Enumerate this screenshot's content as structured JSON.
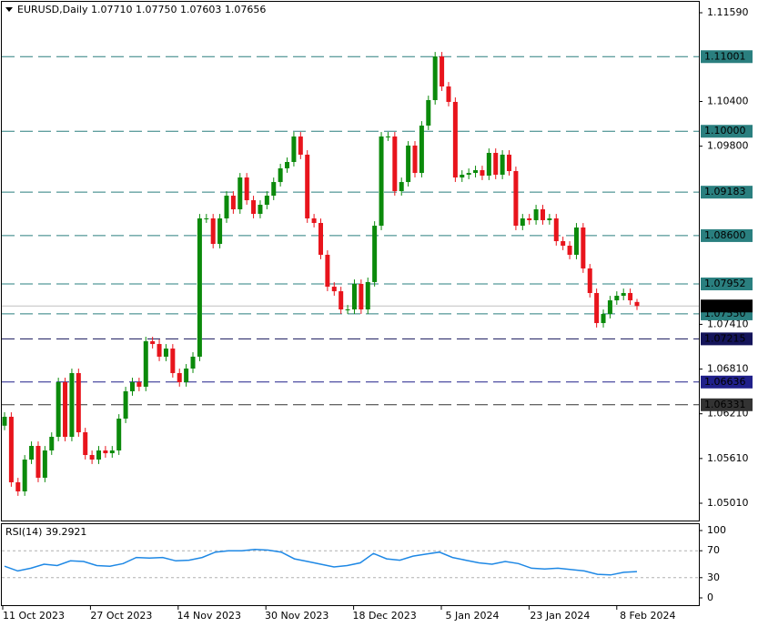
{
  "chart_data": [
    {
      "type": "candlestick",
      "title": "EURUSD,Daily  1.07710 1.07750 1.07603 1.07656",
      "ylim": [
        1.04778,
        1.11761
      ],
      "yticks": [
        {
          "value": 1.1159,
          "label": "1.11590"
        },
        {
          "value": 1.104,
          "label": "1.10400"
        },
        {
          "value": 1.098,
          "label": "1.09800"
        },
        {
          "value": 1.0741,
          "label": "1.07410"
        },
        {
          "value": 1.0681,
          "label": "1.06810"
        },
        {
          "value": 1.0621,
          "label": "1.06210"
        },
        {
          "value": 1.0561,
          "label": "1.05610"
        },
        {
          "value": 1.0501,
          "label": "1.05010"
        }
      ],
      "x_labels": [
        "11 Oct 2023",
        "27 Oct 2023",
        "14 Nov 2023",
        "30 Nov 2023",
        "18 Dec 2023",
        "5 Jan 2024",
        "23 Jan 2024",
        "8 Feb 2024"
      ],
      "bull_color": "#0b8a0b",
      "bear_color": "#e8141c",
      "levels": [
        {
          "value": 1.11001,
          "color": "#2a7f7f"
        },
        {
          "value": 1.1,
          "label": "1.10000",
          "color": "#2a7f7f"
        },
        {
          "value": 1.09183,
          "color": "#2a7f7f"
        },
        {
          "value": 1.086,
          "label": "1.08600",
          "color": "#2a7f7f"
        },
        {
          "value": 1.07952,
          "color": "#2a7f7f"
        },
        {
          "value": 1.0755,
          "label": "1.07550",
          "color": "#2a7f7f"
        },
        {
          "value": 1.07215,
          "color": "#14145a"
        },
        {
          "value": 1.06636,
          "color": "#20208a"
        },
        {
          "value": 1.06331,
          "color": "#333333"
        }
      ],
      "current_price": 1.07656,
      "open": [
        1.0605,
        1.0617,
        1.05291,
        1.05169,
        1.05596,
        1.05779,
        1.05352,
        1.05718,
        1.05901,
        1.06634,
        1.05901,
        1.06756,
        1.05962,
        1.05657,
        1.05596,
        1.05718,
        1.05681,
        1.05718,
        1.06145,
        1.06512,
        1.06634,
        1.06573,
        1.07183,
        1.07146,
        1.06976,
        1.07085,
        1.06756,
        1.06634,
        1.06817,
        1.06976,
        1.08831,
        1.08831,
        1.08489,
        1.08831,
        1.09136,
        1.08953,
        1.0938,
        1.09075,
        1.08892,
        1.09014,
        1.09136,
        1.09319,
        1.09503,
        1.09588,
        1.0993,
        1.09686,
        1.08831,
        1.0877,
        1.08343,
        1.07915,
        1.07854,
        1.0761,
        1.0761,
        1.07952,
        1.0761,
        1.07977,
        1.08733,
        1.0993,
        1.0993,
        1.09197,
        1.09319,
        1.09808,
        1.09441,
        1.10076,
        1.10418,
        1.11004,
        1.10601,
        1.10394,
        1.0938,
        1.09417,
        1.09441,
        1.09478,
        1.09405,
        1.0971,
        1.09417,
        1.09686,
        1.09466,
        1.08733,
        1.08831,
        1.08807,
        1.08953,
        1.08807,
        1.08831,
        1.08526,
        1.08465,
        1.08343,
        1.08709,
        1.0816,
        1.0783,
        1.07427,
        1.07549,
        1.07732,
        1.07793,
        1.0783,
        1.0771
      ],
      "high": [
        1.0623,
        1.0623,
        1.05351,
        1.05656,
        1.05839,
        1.05839,
        1.05778,
        1.05961,
        1.06694,
        1.06694,
        1.06816,
        1.06816,
        1.06022,
        1.05717,
        1.05778,
        1.05778,
        1.05778,
        1.06205,
        1.06572,
        1.06694,
        1.06694,
        1.07243,
        1.07243,
        1.07206,
        1.07145,
        1.07145,
        1.06816,
        1.06877,
        1.07036,
        1.08891,
        1.08891,
        1.08891,
        1.08891,
        1.09196,
        1.09196,
        1.0944,
        1.0944,
        1.09135,
        1.09074,
        1.09196,
        1.09379,
        1.09563,
        1.09648,
        1.0999,
        1.0999,
        1.09746,
        1.08891,
        1.0883,
        1.08403,
        1.07975,
        1.07914,
        1.0767,
        1.08012,
        1.08012,
        1.08037,
        1.08793,
        1.0999,
        1.0999,
        1.0999,
        1.09379,
        1.09868,
        1.09868,
        1.10136,
        1.10478,
        1.11064,
        1.11064,
        1.10661,
        1.10454,
        1.09477,
        1.09501,
        1.09538,
        1.09538,
        1.0977,
        1.0977,
        1.09746,
        1.09746,
        1.09526,
        1.08891,
        1.08891,
        1.09013,
        1.09013,
        1.08891,
        1.08891,
        1.08586,
        1.08525,
        1.08769,
        1.08769,
        1.0822,
        1.0789,
        1.07609,
        1.07792,
        1.07853,
        1.0789,
        1.0789,
        1.0775
      ],
      "low": [
        1.0599,
        1.05231,
        1.05109,
        1.05109,
        1.05536,
        1.05292,
        1.05292,
        1.05658,
        1.05841,
        1.05841,
        1.05841,
        1.05902,
        1.05597,
        1.05536,
        1.05536,
        1.05621,
        1.05621,
        1.05658,
        1.06085,
        1.06452,
        1.06513,
        1.06513,
        1.07086,
        1.06916,
        1.06916,
        1.06696,
        1.06574,
        1.06574,
        1.06757,
        1.06916,
        1.08771,
        1.08429,
        1.08429,
        1.08771,
        1.08893,
        1.08893,
        1.09015,
        1.08832,
        1.08832,
        1.08954,
        1.09076,
        1.09259,
        1.09443,
        1.09528,
        1.09626,
        1.08771,
        1.0871,
        1.08283,
        1.07855,
        1.07794,
        1.0755,
        1.0755,
        1.0755,
        1.0755,
        1.0755,
        1.07917,
        1.08673,
        1.0987,
        1.09137,
        1.09137,
        1.09259,
        1.09381,
        1.09381,
        1.10016,
        1.10358,
        1.10541,
        1.10334,
        1.0932,
        1.0932,
        1.09357,
        1.09381,
        1.09345,
        1.09345,
        1.09357,
        1.09357,
        1.09406,
        1.08673,
        1.08673,
        1.08747,
        1.08747,
        1.08747,
        1.08747,
        1.08466,
        1.08405,
        1.08283,
        1.08283,
        1.081,
        1.0777,
        1.07367,
        1.07367,
        1.07489,
        1.07672,
        1.07733,
        1.07672,
        1.07603
      ],
      "close": [
        1.0617,
        1.05291,
        1.05169,
        1.05596,
        1.05779,
        1.05352,
        1.05718,
        1.05901,
        1.06634,
        1.05901,
        1.06756,
        1.05962,
        1.05657,
        1.05596,
        1.05718,
        1.05681,
        1.05718,
        1.06145,
        1.06512,
        1.06634,
        1.06573,
        1.07183,
        1.07146,
        1.06976,
        1.07085,
        1.06756,
        1.06634,
        1.06817,
        1.06976,
        1.08831,
        1.08831,
        1.08489,
        1.08831,
        1.09136,
        1.08953,
        1.0938,
        1.09075,
        1.08892,
        1.09014,
        1.09136,
        1.09319,
        1.09503,
        1.09588,
        1.0993,
        1.09686,
        1.08831,
        1.0877,
        1.08343,
        1.07915,
        1.07854,
        1.0761,
        1.0761,
        1.07952,
        1.0761,
        1.07977,
        1.08733,
        1.0993,
        1.0993,
        1.09197,
        1.09319,
        1.09808,
        1.09441,
        1.10076,
        1.10418,
        1.11004,
        1.10601,
        1.10394,
        1.0938,
        1.09417,
        1.09441,
        1.09478,
        1.09405,
        1.0971,
        1.09417,
        1.09686,
        1.09466,
        1.08733,
        1.08831,
        1.08807,
        1.08953,
        1.08807,
        1.08831,
        1.08526,
        1.08465,
        1.08343,
        1.08709,
        1.0816,
        1.0783,
        1.07427,
        1.07549,
        1.07732,
        1.07793,
        1.0783,
        1.07732,
        1.07656
      ]
    },
    {
      "type": "line",
      "title": "RSI(14) 39.2921",
      "ylim": [
        0,
        100
      ],
      "yticks": [
        100,
        70,
        30,
        0
      ],
      "grid_levels": [
        70,
        30
      ],
      "color": "#1e88e5",
      "values": [
        47,
        40,
        44,
        50,
        48,
        55,
        54,
        48,
        47,
        51,
        60,
        59,
        60,
        55,
        56,
        60,
        68,
        70,
        70,
        72,
        71,
        68,
        58,
        54,
        50,
        46,
        48,
        52,
        66,
        58,
        56,
        62,
        65,
        68,
        60,
        56,
        52,
        50,
        54,
        51,
        44,
        43,
        44,
        42,
        40,
        35,
        34,
        38,
        39
      ]
    }
  ]
}
